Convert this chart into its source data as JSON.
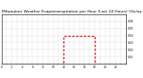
{
  "title": "Milwaukee Weather Evapotranspiration per Hour (Last 24 Hours) (Oz/sq ft)",
  "hours": [
    0,
    1,
    2,
    3,
    4,
    5,
    6,
    7,
    8,
    9,
    10,
    11,
    12,
    13,
    14,
    15,
    16,
    17,
    18,
    19,
    20,
    21,
    22,
    23
  ],
  "values": [
    0,
    0,
    0,
    0,
    0,
    0,
    0,
    0,
    0,
    0,
    0,
    0,
    0.04,
    0.04,
    0.04,
    0.04,
    0.04,
    0.04,
    0,
    0,
    0,
    0,
    0,
    0
  ],
  "bar_color": "#ff0000",
  "bg_color": "#ffffff",
  "grid_color": "#888888",
  "title_fontsize": 3.2,
  "ylim": [
    0,
    0.07
  ],
  "ytick_values": [
    0.01,
    0.02,
    0.03,
    0.04,
    0.05,
    0.06
  ],
  "ytick_labels": [
    "0.01",
    "0.02",
    "0.03",
    "0.04",
    "0.05",
    "0.06"
  ],
  "xlim": [
    0,
    24
  ],
  "line_width": 0.9,
  "dash_style": [
    2,
    1.5
  ]
}
